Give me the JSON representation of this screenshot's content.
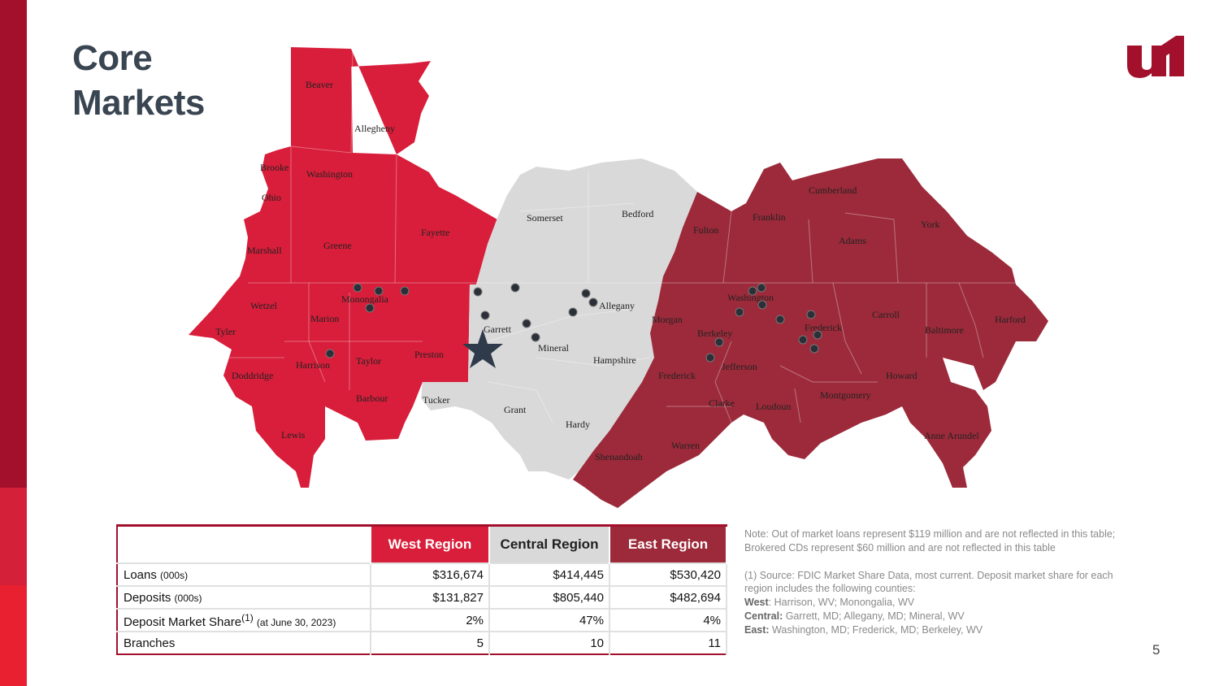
{
  "title": {
    "line1": "Core",
    "line2": "Markets"
  },
  "colors": {
    "west": "#d81e3a",
    "central": "#d9d9d9",
    "east": "#9c2a3a",
    "brand": "#a3102c",
    "title": "#3a4552"
  },
  "logo": {
    "icon": "united-bank-logo-icon",
    "text": "u1"
  },
  "map": {
    "counties": {
      "beaver": "Beaver",
      "allegheny": "Allegheny",
      "brooke": "Brooke",
      "washington_pa": "Washington",
      "ohio": "Ohio",
      "fayette": "Fayette",
      "marshall": "Marshall",
      "greene": "Greene",
      "wetzel": "Wetzel",
      "monongalia": "Monongalia",
      "marion": "Marion",
      "tyler": "Tyler",
      "harrison": "Harrison",
      "taylor": "Taylor",
      "preston": "Preston",
      "doddridge": "Doddridge",
      "barbour": "Barbour",
      "lewis": "Lewis",
      "tucker": "Tucker",
      "somerset": "Somerset",
      "bedford": "Bedford",
      "garrett": "Garrett",
      "allegany": "Allegany",
      "mineral": "Mineral",
      "hampshire": "Hampshire",
      "grant": "Grant",
      "hardy": "Hardy",
      "cumberland": "Cumberland",
      "franklin": "Franklin",
      "fulton": "Fulton",
      "adams": "Adams",
      "york": "York",
      "washington_md": "Washington",
      "morgan": "Morgan",
      "carroll": "Carroll",
      "harford": "Harford",
      "berkeley": "Berkeley",
      "frederick_md": "Frederick",
      "baltimore": "Baltimore",
      "jefferson": "Jefferson",
      "frederick_va": "Frederick",
      "howard": "Howard",
      "clarke": "Clarke",
      "loudoun": "Loudoun",
      "montgomery": "Montgomery",
      "shenandoah": "Shenandoah",
      "warren": "Warren",
      "anne_arundel": "Anne Arundel"
    }
  },
  "table": {
    "headers": {
      "blank": "",
      "west": "West Region",
      "central": "Central Region",
      "east": "East Region"
    },
    "rows": [
      {
        "label": "Loans",
        "unit": "(000s)",
        "sup": "",
        "suffix": "",
        "west": "$316,674",
        "central": "$414,445",
        "east": "$530,420"
      },
      {
        "label": "Deposits",
        "unit": "(000s)",
        "sup": "",
        "suffix": "",
        "west": "$131,827",
        "central": "$805,440",
        "east": "$482,694"
      },
      {
        "label": "Deposit Market Share",
        "unit": "",
        "sup": "(1)",
        "suffix": "(at June 30, 2023)",
        "west": "2%",
        "central": "47%",
        "east": "4%"
      },
      {
        "label": "Branches",
        "unit": "",
        "sup": "",
        "suffix": "",
        "west": "5",
        "central": "10",
        "east": "11"
      }
    ]
  },
  "notes": {
    "note1": "Note: Out of market loans represent $119 million and are not reflected in this table; Brokered CDs represent $60 million and are not reflected in this table",
    "note2": "(1) Source: FDIC Market Share Data, most current.  Deposit market share for each region includes the following counties:",
    "west_label": "West",
    "west_text": ": Harrison, WV; Monongalia, WV",
    "central_label": "Central:",
    "central_text": " Garrett, MD; Allegany, MD; Mineral, WV",
    "east_label": "East:",
    "east_text": " Washington, MD; Frederick, MD; Berkeley, WV"
  },
  "page_number": "5"
}
